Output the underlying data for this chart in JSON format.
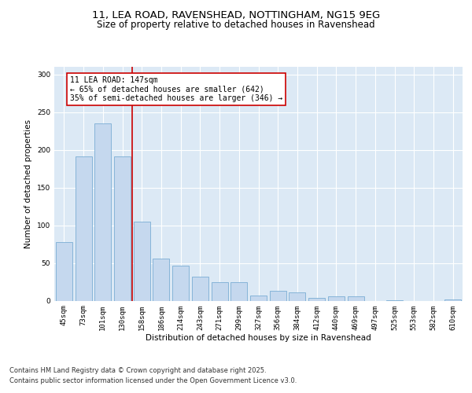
{
  "title_line1": "11, LEA ROAD, RAVENSHEAD, NOTTINGHAM, NG15 9EG",
  "title_line2": "Size of property relative to detached houses in Ravenshead",
  "xlabel": "Distribution of detached houses by size in Ravenshead",
  "ylabel": "Number of detached properties",
  "categories": [
    "45sqm",
    "73sqm",
    "101sqm",
    "130sqm",
    "158sqm",
    "186sqm",
    "214sqm",
    "243sqm",
    "271sqm",
    "299sqm",
    "327sqm",
    "356sqm",
    "384sqm",
    "412sqm",
    "440sqm",
    "469sqm",
    "497sqm",
    "525sqm",
    "553sqm",
    "582sqm",
    "610sqm"
  ],
  "values": [
    78,
    191,
    235,
    191,
    105,
    56,
    46,
    32,
    24,
    24,
    7,
    13,
    11,
    4,
    6,
    6,
    0,
    1,
    0,
    0,
    2
  ],
  "bar_color": "#c5d8ee",
  "bar_edge_color": "#7aadd4",
  "annotation_text_line1": "11 LEA ROAD: 147sqm",
  "annotation_text_line2": "← 65% of detached houses are smaller (642)",
  "annotation_text_line3": "35% of semi-detached houses are larger (346) →",
  "red_line_color": "#cc0000",
  "annotation_box_color": "#ffffff",
  "annotation_box_edge_color": "#cc0000",
  "footer_line1": "Contains HM Land Registry data © Crown copyright and database right 2025.",
  "footer_line2": "Contains public sector information licensed under the Open Government Licence v3.0.",
  "ylim": [
    0,
    310
  ],
  "yticks": [
    0,
    50,
    100,
    150,
    200,
    250,
    300
  ],
  "background_color": "#dce9f5",
  "plot_bg_color": "#dce9f5",
  "fig_bg_color": "#ffffff",
  "title_fontsize": 9.5,
  "subtitle_fontsize": 8.5,
  "axis_label_fontsize": 7.5,
  "tick_fontsize": 6.5,
  "annotation_fontsize": 7,
  "footer_fontsize": 6
}
